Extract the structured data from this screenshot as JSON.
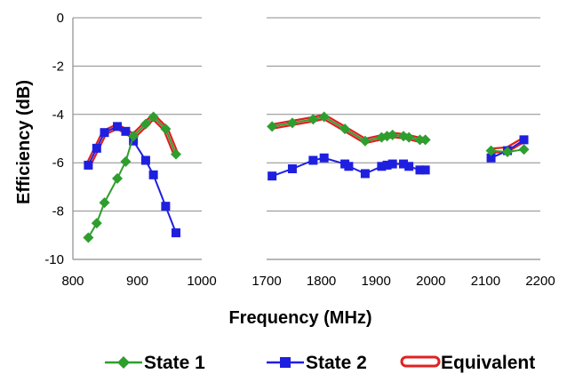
{
  "chart_data": {
    "type": "line",
    "xlabel": "Frequency (MHz)",
    "ylabel": "Efficiency (dB)",
    "ylim": [
      -10,
      0
    ],
    "yticks": [
      "0",
      "-2",
      "-4",
      "-6",
      "-8",
      "-10"
    ],
    "grid": "horizontal",
    "legend_position": "bottom",
    "panels": [
      {
        "xlim": [
          800,
          1000
        ],
        "xticks": [
          "800",
          "900",
          "1000"
        ],
        "series": [
          {
            "name": "State 1",
            "color": "#2e9e2e",
            "marker": "diamond",
            "x": [
              824,
              837,
              849,
              869,
              882,
              894,
              913,
              925,
              944,
              960
            ],
            "y": [
              -9.1,
              -8.5,
              -7.65,
              -6.65,
              -5.95,
              -4.9,
              -4.4,
              -4.1,
              -4.6,
              -5.65
            ]
          },
          {
            "name": "State 2",
            "color": "#1f1fe0",
            "marker": "square",
            "x": [
              824,
              837,
              849,
              869,
              882,
              894,
              913,
              925,
              944,
              960
            ],
            "y": [
              -6.1,
              -5.4,
              -4.75,
              -4.5,
              -4.7,
              -5.1,
              -5.9,
              -6.5,
              -7.8,
              -8.9
            ]
          },
          {
            "name": "Equivalent",
            "color": "#e02020",
            "marker": "none",
            "x": [
              824,
              837,
              849,
              869,
              882,
              894,
              913,
              925,
              944,
              960
            ],
            "y": [
              -6.1,
              -5.4,
              -4.75,
              -4.5,
              -4.7,
              -4.9,
              -4.4,
              -4.1,
              -4.6,
              -5.65
            ]
          }
        ]
      },
      {
        "xlim": [
          1700,
          2200
        ],
        "xticks": [
          "1700",
          "1800",
          "1900",
          "2000",
          "2100",
          "2200"
        ],
        "series": [
          {
            "name": "State 1",
            "color": "#2e9e2e",
            "marker": "diamond",
            "x": [
              1710,
              1747,
              1785,
              1805,
              1843,
              1880,
              1910,
              1920,
              1930,
              1950,
              1960,
              1980,
              1990,
              2110,
              2140,
              2170
            ],
            "y": [
              -4.5,
              -4.35,
              -4.2,
              -4.1,
              -4.6,
              -5.1,
              -4.95,
              -4.9,
              -4.85,
              -4.9,
              -4.95,
              -5.05,
              -5.05,
              -5.5,
              -5.55,
              -5.45
            ]
          },
          {
            "name": "State 2",
            "color": "#1f1fe0",
            "marker": "square",
            "x": [
              1710,
              1747,
              1785,
              1805,
              1843,
              1850,
              1880,
              1910,
              1920,
              1930,
              1950,
              1960,
              1980,
              1990,
              2110,
              2140,
              2170
            ],
            "y": [
              -6.55,
              -6.25,
              -5.9,
              -5.8,
              -6.05,
              -6.15,
              -6.45,
              -6.15,
              -6.1,
              -6.05,
              -6.05,
              -6.15,
              -6.3,
              -6.3,
              -5.8,
              -5.5,
              -5.05
            ]
          },
          {
            "name": "Equivalent",
            "color": "#e02020",
            "marker": "none",
            "x": [
              1710,
              1747,
              1785,
              1805,
              1843,
              1880,
              1910,
              1920,
              1930,
              1950,
              1960,
              1980,
              1990,
              2110,
              2140,
              2170
            ],
            "y": [
              -4.5,
              -4.35,
              -4.2,
              -4.1,
              -4.6,
              -5.1,
              -4.95,
              -4.9,
              -4.85,
              -4.9,
              -4.95,
              -5.05,
              -5.05,
              -5.5,
              -5.45,
              -5.05
            ]
          }
        ]
      }
    ],
    "legend": [
      {
        "label": "State 1",
        "color": "#2e9e2e",
        "marker": "diamond"
      },
      {
        "label": "State 2",
        "color": "#1f1fe0",
        "marker": "square"
      },
      {
        "label": "Equivalent",
        "color": "#e02020",
        "marker": "none"
      }
    ]
  }
}
